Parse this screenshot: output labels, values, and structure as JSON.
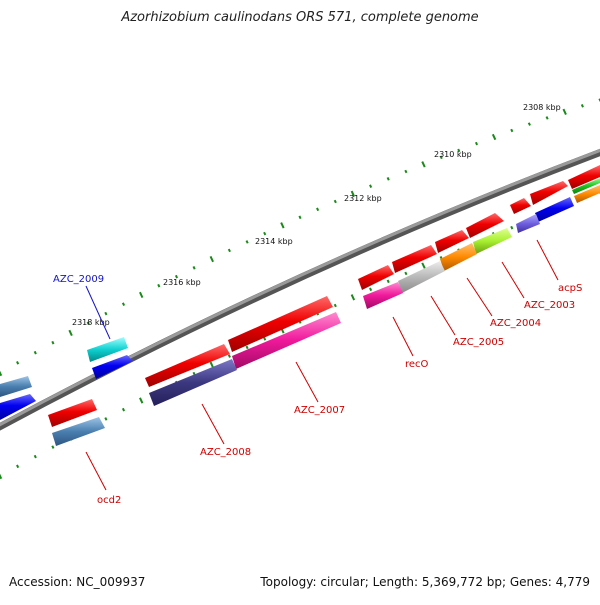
{
  "title": "Azorhizobium caulinodans ORS 571, complete genome",
  "footer": {
    "accession": "Accession: NC_009937",
    "topology": "Topology: circular; Length: 5,369,772 bp; Genes: 4,779"
  },
  "colors": {
    "backbone": "#808080",
    "ticks": "#1a8a1a",
    "label_default": "#d40000",
    "label_selected": "#1414c8"
  },
  "scale_labels": [
    "2308 kbp",
    "2310 kbp",
    "2312 kbp",
    "2314 kbp",
    "2316 kbp",
    "2318 kbp"
  ],
  "genes": [
    {
      "id": "acpS",
      "label": "acpS",
      "color": "#cc0000"
    },
    {
      "id": "AZC_2003",
      "label": "AZC_2003",
      "color": "#cc0000"
    },
    {
      "id": "AZC_2004",
      "label": "AZC_2004",
      "color": "#cc0000"
    },
    {
      "id": "AZC_2005",
      "label": "AZC_2005",
      "color": "#cc0000"
    },
    {
      "id": "recO",
      "label": "recO",
      "color": "#cc0000"
    },
    {
      "id": "AZC_2007",
      "label": "AZC_2007",
      "color": "#cc0000"
    },
    {
      "id": "AZC_2008",
      "label": "AZC_2008",
      "color": "#cc0000"
    },
    {
      "id": "AZC_2009",
      "label": "AZC_2009",
      "color": "#1414c8"
    },
    {
      "id": "ocd2",
      "label": "ocd2",
      "color": "#cc0000"
    }
  ]
}
